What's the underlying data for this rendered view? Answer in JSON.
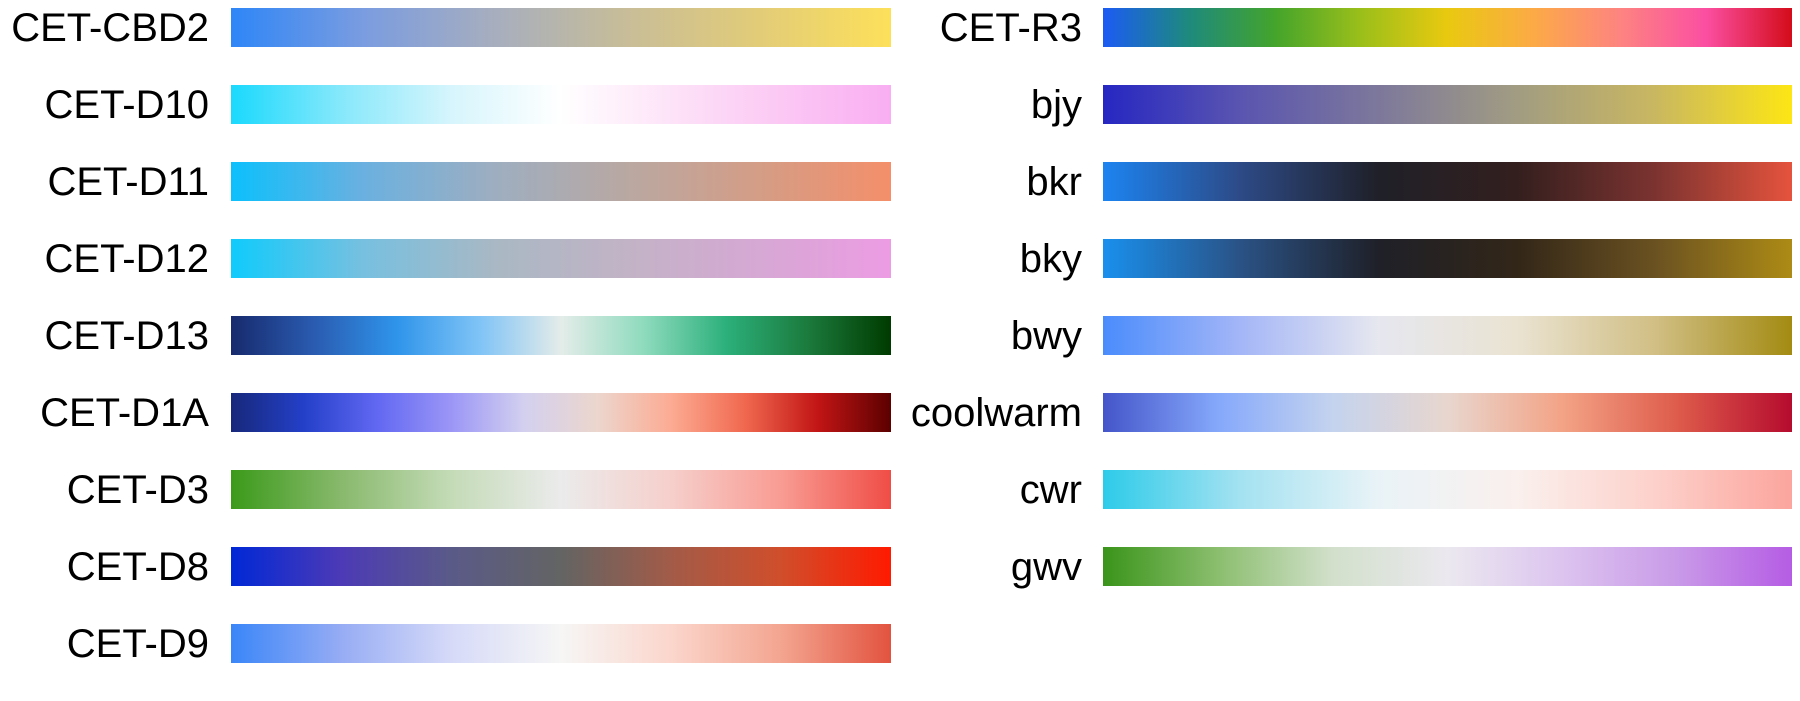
{
  "chart_data": {
    "type": "colormap-swatches",
    "columns": [
      {
        "colormaps": [
          {
            "name": "CET-CBD2",
            "stops": [
              "#2e86f7",
              "#7a9ce0",
              "#a7aebe",
              "#c8bd98",
              "#e2cc78",
              "#fde05a"
            ]
          },
          {
            "name": "CET-D10",
            "stops": [
              "#1ad9fd",
              "#86e8fb",
              "#d6f5fc",
              "#ffffff",
              "#fde3f8",
              "#fbc8f4",
              "#f9aef2"
            ]
          },
          {
            "name": "CET-D11",
            "stops": [
              "#0cc0fc",
              "#6ab0e0",
              "#9eaec0",
              "#b9a8a2",
              "#d49d86",
              "#f48f6a"
            ]
          },
          {
            "name": "CET-D12",
            "stops": [
              "#0fcbfc",
              "#77c0e0",
              "#a9b8c4",
              "#c2b3c6",
              "#d6a8d4",
              "#ec9ce3"
            ]
          },
          {
            "name": "CET-D13",
            "stops": [
              "#172a6d",
              "#2a5bb0",
              "#2e94ea",
              "#7ec3f6",
              "#e4ece9",
              "#8fdbbe",
              "#2cb07b",
              "#1b7a3c",
              "#003b00"
            ]
          },
          {
            "name": "CET-D1A",
            "stops": [
              "#17287a",
              "#2440c9",
              "#6268f2",
              "#9b96f6",
              "#d3d0ef",
              "#ecd6cd",
              "#fcab93",
              "#f0694f",
              "#c21515",
              "#5c0000"
            ]
          },
          {
            "name": "CET-D3",
            "stops": [
              "#3b9a1a",
              "#88b96c",
              "#c4dbb7",
              "#ebebeb",
              "#f6cfcb",
              "#f89c93",
              "#ef4d46"
            ]
          },
          {
            "name": "CET-D8",
            "stops": [
              "#0028d6",
              "#4c3ab6",
              "#5a5a88",
              "#636463",
              "#a25b48",
              "#d04e2b",
              "#ff1a00"
            ]
          },
          {
            "name": "CET-D9",
            "stops": [
              "#3a86f8",
              "#96acf4",
              "#d6daf8",
              "#f6f6f5",
              "#fbd6cc",
              "#f3a590",
              "#e2533f"
            ]
          }
        ]
      },
      {
        "colormaps": [
          {
            "name": "CET-R3",
            "stops": [
              "#1b5bf4",
              "#1e8a7c",
              "#44a42b",
              "#9bbf1a",
              "#e9c910",
              "#fcaa46",
              "#fd8480",
              "#fb4fa2",
              "#d40c1a"
            ]
          },
          {
            "name": "bjy",
            "stops": [
              "#2627c2",
              "#5a55b0",
              "#7d789b",
              "#a19c82",
              "#c9b761",
              "#fde614"
            ]
          },
          {
            "name": "bkr",
            "stops": [
              "#1c84f1",
              "#2d4a86",
              "#1f2028",
              "#331f1e",
              "#7b3330",
              "#e5533d"
            ]
          },
          {
            "name": "bky",
            "stops": [
              "#1990ed",
              "#2a5285",
              "#1f2028",
              "#322618",
              "#6a5121",
              "#ad8b15"
            ]
          },
          {
            "name": "bwy",
            "stops": [
              "#4a8cfc",
              "#a4b6f7",
              "#e6e7ef",
              "#eae3d2",
              "#d1bf85",
              "#a38b12"
            ]
          },
          {
            "name": "coolwarm",
            "stops": [
              "#4455c9",
              "#85a8fb",
              "#c4d3ee",
              "#e8d6ce",
              "#f3a386",
              "#de5c4b",
              "#b50b2e"
            ]
          },
          {
            "name": "cwr",
            "stops": [
              "#2dcbe9",
              "#a4e2f1",
              "#e9f3f7",
              "#faf0ed",
              "#fdd1cb",
              "#fba59d"
            ]
          },
          {
            "name": "gwv",
            "stops": [
              "#3a941a",
              "#8bbe6e",
              "#d2e0cb",
              "#ebe8ef",
              "#dcc4ef",
              "#c99ae8",
              "#b55ce4"
            ]
          }
        ]
      }
    ]
  }
}
